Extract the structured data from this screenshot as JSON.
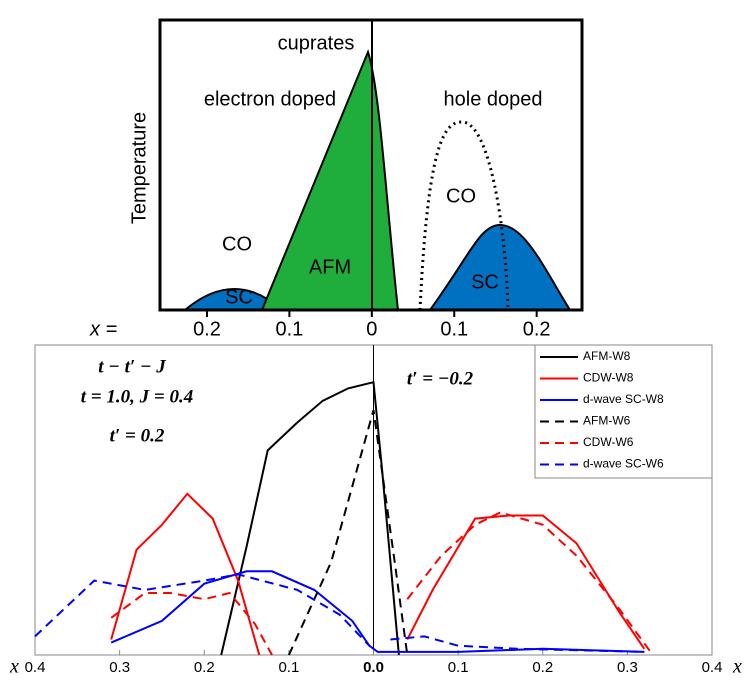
{
  "chart_data": [
    {
      "type": "schematic",
      "title": "cuprates",
      "ylabel": "Temperature",
      "xlabel": "x =",
      "xlim": [
        -0.257,
        0.255
      ],
      "xticks": [
        {
          "value": -0.2,
          "label": "0.2"
        },
        {
          "value": -0.1,
          "label": "0.1"
        },
        0,
        {
          "value": 0.1,
          "label": "0.1"
        },
        {
          "value": 0.2,
          "label": "0.2"
        }
      ],
      "annotations": [
        "electron doped",
        "hole doped",
        "CO",
        "CO",
        "SC",
        "SC",
        "AFM"
      ]
    },
    {
      "type": "line",
      "xlabel": "x",
      "xlim": [
        -0.4,
        0.4
      ],
      "ylim": [
        0,
        1
      ],
      "xticks": [
        {
          "value": -0.4,
          "label": "0.4"
        },
        {
          "value": -0.3,
          "label": "0.3"
        },
        {
          "value": -0.2,
          "label": "0.2"
        },
        {
          "value": -0.1,
          "label": "0.1"
        },
        {
          "value": 0,
          "label": "0.0"
        },
        0.1,
        0.2,
        0.3,
        0.4
      ],
      "annotations": [
        "t − t′ − J",
        "t = 1.0, J = 0.4",
        "t′ = 0.2",
        "t′ = −0.2"
      ],
      "legend": "upper right",
      "series": [
        {
          "name": "AFM-W8",
          "color": "#000000",
          "dash": false,
          "x": [
            -0.18,
            -0.15,
            -0.125,
            -0.09,
            -0.06,
            -0.03,
            0,
            0.01,
            0.03
          ],
          "values": [
            0,
            0.35,
            0.66,
            0.75,
            0.82,
            0.86,
            0.88,
            0.6,
            0
          ]
        },
        {
          "name": "CDW-W8",
          "color": "#ff0000",
          "dash": false,
          "x": [
            -0.31,
            -0.28,
            -0.25,
            -0.22,
            -0.19,
            -0.16,
            -0.135,
            null,
            0.04,
            0.07,
            0.12,
            0.16,
            0.2,
            0.24,
            0.29,
            0.32
          ],
          "values": [
            0.05,
            0.34,
            0.42,
            0.52,
            0.44,
            0.24,
            0,
            null,
            0.05,
            0.21,
            0.44,
            0.45,
            0.45,
            0.36,
            0.14,
            0.02
          ]
        },
        {
          "name": "d-wave SC-W8",
          "color": "#0000ff",
          "dash": false,
          "x": [
            -0.31,
            -0.25,
            -0.2,
            -0.15,
            -0.12,
            -0.07,
            -0.025,
            -0.005,
            0.005,
            0.05,
            0.1,
            0.2,
            0.32
          ],
          "values": [
            0.04,
            0.11,
            0.23,
            0.27,
            0.27,
            0.21,
            0.11,
            0.03,
            0.01,
            0.01,
            0.01,
            0.02,
            0.01
          ]
        },
        {
          "name": "AFM-W6",
          "color": "#000000",
          "dash": true,
          "x": [
            -0.1,
            -0.05,
            0,
            0.025,
            0.04
          ],
          "values": [
            0,
            0.3,
            0.79,
            0.3,
            0
          ]
        },
        {
          "name": "CDW-W6",
          "color": "#ff0000",
          "dash": true,
          "x": [
            -0.31,
            -0.27,
            -0.24,
            -0.2,
            -0.17,
            -0.14,
            -0.12,
            null,
            0.04,
            0.08,
            0.12,
            0.15,
            0.2,
            0.24,
            0.29,
            0.33
          ],
          "values": [
            0.12,
            0.2,
            0.2,
            0.18,
            0.2,
            0.1,
            0,
            null,
            0.18,
            0.32,
            0.42,
            0.46,
            0.42,
            0.32,
            0.15,
            0
          ]
        },
        {
          "name": "d-wave SC-W6",
          "color": "#0000ff",
          "dash": true,
          "x": [
            -0.4,
            -0.33,
            -0.27,
            -0.2,
            -0.16,
            -0.09,
            -0.04,
            -0.005,
            null,
            0.02,
            0.06,
            0.1,
            0.17,
            0.32
          ],
          "values": [
            0.06,
            0.24,
            0.21,
            0.24,
            0.26,
            0.21,
            0.13,
            0.03,
            null,
            0.05,
            0.06,
            0.03,
            0.02,
            0.01
          ]
        }
      ]
    }
  ]
}
